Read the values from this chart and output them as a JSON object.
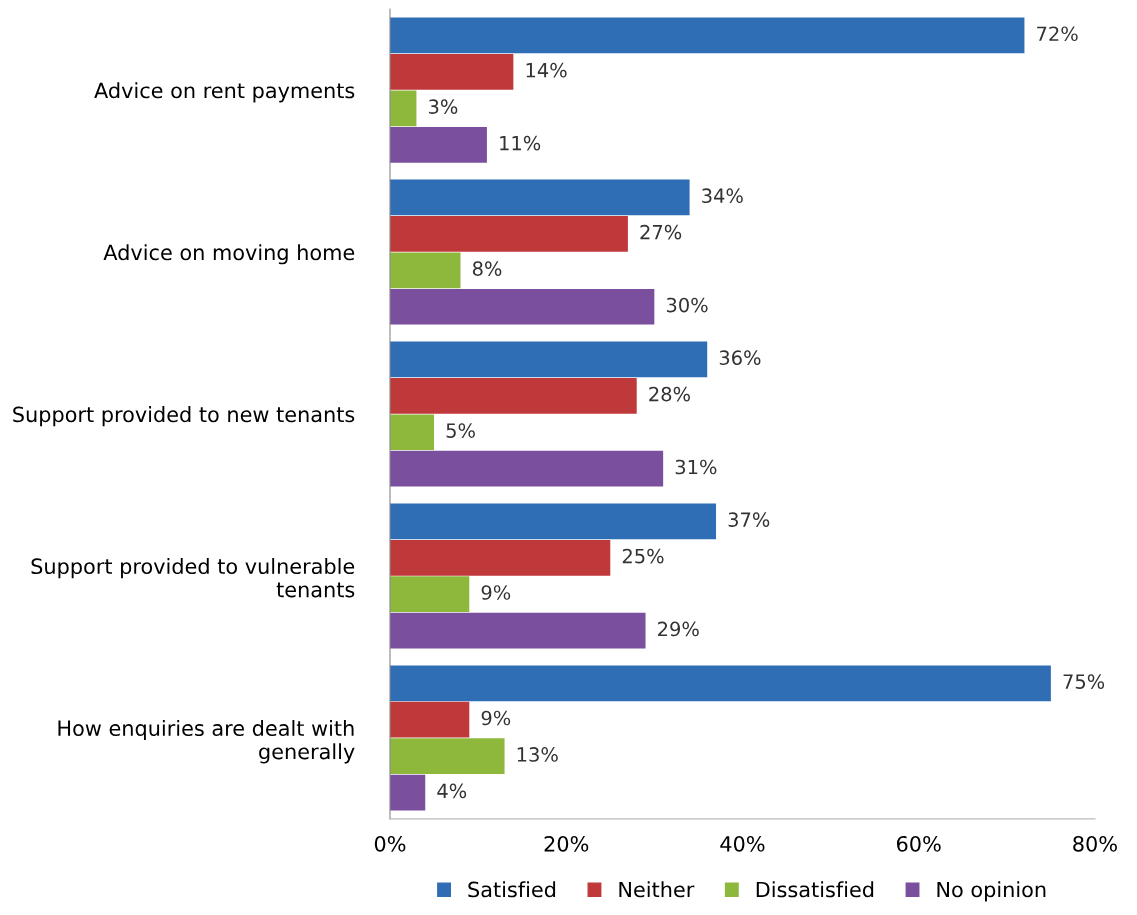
{
  "chart_data": {
    "type": "bar",
    "orientation": "horizontal",
    "categories": [
      "Advice on rent payments",
      "Advice on moving home",
      "Support provided to new tenants",
      "Support provided to vulnerable\ntenants",
      "How enquiries are dealt with\ngenerally"
    ],
    "series": [
      {
        "name": "Satisfied",
        "color": "#2f6db5",
        "values": [
          72,
          34,
          36,
          37,
          75
        ],
        "value_labels": [
          "72%",
          "34%",
          "36%",
          "37%",
          "75%"
        ]
      },
      {
        "name": "Neither",
        "color": "#c0393a",
        "values": [
          14,
          27,
          28,
          25,
          9
        ],
        "value_labels": [
          "14%",
          "27%",
          "28%",
          "25%",
          "9%"
        ]
      },
      {
        "name": "Dissatisfied",
        "color": "#8db83c",
        "values": [
          3,
          8,
          5,
          9,
          13
        ],
        "value_labels": [
          "3%",
          "8%",
          "5%",
          "9%",
          "13%"
        ]
      },
      {
        "name": "No opinion",
        "color": "#7a4f9e",
        "values": [
          11,
          30,
          31,
          29,
          4
        ],
        "value_labels": [
          "11%",
          "30%",
          "31%",
          "29%",
          "4%"
        ]
      }
    ],
    "xlim": [
      0,
      80
    ],
    "xticks": [
      {
        "value": 0,
        "label": "0%"
      },
      {
        "value": 20,
        "label": "20%"
      },
      {
        "value": 40,
        "label": "40%"
      },
      {
        "value": 60,
        "label": "60%"
      },
      {
        "value": 80,
        "label": "80%"
      }
    ],
    "grid": false,
    "legend": "bottom"
  }
}
